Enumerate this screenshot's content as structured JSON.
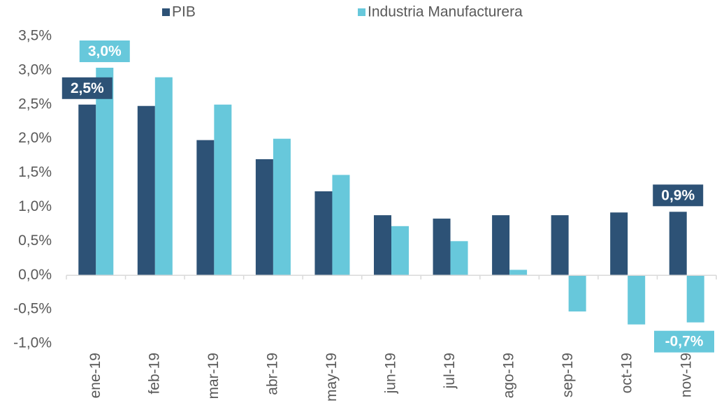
{
  "chart_data": {
    "type": "bar",
    "categories": [
      "ene-19",
      "feb-19",
      "mar-19",
      "abr-19",
      "may-19",
      "jun-19",
      "jul-19",
      "ago-19",
      "sep-19",
      "oct-19",
      "nov-19"
    ],
    "series": [
      {
        "name": "PIB",
        "color": "#2d5276",
        "values": [
          2.5,
          2.48,
          1.98,
          1.7,
          1.23,
          0.88,
          0.83,
          0.88,
          0.88,
          0.92,
          0.93
        ],
        "value_labels": [
          "2,5%",
          null,
          null,
          null,
          null,
          null,
          null,
          null,
          null,
          null,
          "0,9%"
        ]
      },
      {
        "name": "Industria Manufacturera",
        "color": "#67c8db",
        "values": [
          3.04,
          2.9,
          2.5,
          2.0,
          1.47,
          0.72,
          0.5,
          0.08,
          -0.53,
          -0.72,
          -0.69
        ],
        "value_labels": [
          "3,0%",
          null,
          null,
          null,
          null,
          null,
          null,
          null,
          null,
          null,
          "-0,7%"
        ]
      }
    ],
    "ylim": [
      -1.0,
      3.5
    ],
    "yticks": [
      {
        "value": -1.0,
        "label": "-1,0%"
      },
      {
        "value": -0.5,
        "label": "-0,5%"
      },
      {
        "value": 0.0,
        "label": "0,0%"
      },
      {
        "value": 0.5,
        "label": "0,5%"
      },
      {
        "value": 1.0,
        "label": "1,0%"
      },
      {
        "value": 1.5,
        "label": "1,5%"
      },
      {
        "value": 2.0,
        "label": "2,0%"
      },
      {
        "value": 2.5,
        "label": "2,5%"
      },
      {
        "value": 3.0,
        "label": "3,0%"
      },
      {
        "value": 3.5,
        "label": "3,5%"
      }
    ],
    "legend": "top",
    "grid": false
  }
}
